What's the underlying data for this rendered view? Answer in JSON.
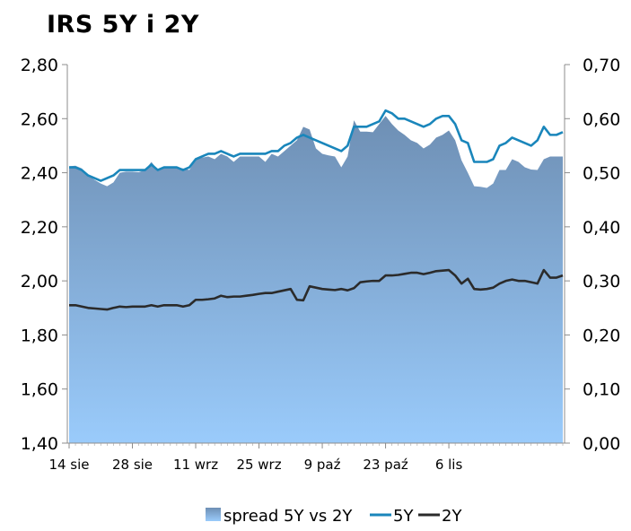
{
  "chart_data": {
    "type": "area",
    "title": "IRS 5Y i 2Y",
    "x_tick_labels": [
      "14 sie",
      "28 sie",
      "11 wrz",
      "25 wrz",
      "9 paź",
      "23 paź",
      "6 lis"
    ],
    "y_left": {
      "ticks": [
        "1,40",
        "1,60",
        "1,80",
        "2,00",
        "2,20",
        "2,40",
        "2,60",
        "2,80"
      ],
      "min": 1.4,
      "max": 2.8
    },
    "y_right": {
      "ticks": [
        "0,00",
        "0,10",
        "0,20",
        "0,30",
        "0,40",
        "0,50",
        "0,60",
        "0,70"
      ],
      "min": 0.0,
      "max": 0.7
    },
    "grid": false,
    "legend_position": "bottom",
    "colors": {
      "spread_top": "#6e8fb4",
      "spread_bottom": "#9acbfb",
      "line_5y": "#1a86bb",
      "line_2y": "#2b2b2b"
    },
    "series": [
      {
        "name": "spread 5Y vs 2Y",
        "axis": "right",
        "kind": "area",
        "values": [
          0.512,
          0.513,
          0.508,
          0.495,
          0.487,
          0.48,
          0.475,
          0.482,
          0.5,
          0.502,
          0.502,
          0.501,
          0.505,
          0.52,
          0.505,
          0.51,
          0.51,
          0.51,
          0.508,
          0.505,
          0.525,
          0.528,
          0.53,
          0.525,
          0.535,
          0.53,
          0.52,
          0.53,
          0.53,
          0.53,
          0.53,
          0.52,
          0.535,
          0.53,
          0.54,
          0.55,
          0.56,
          0.585,
          0.58,
          0.545,
          0.535,
          0.532,
          0.53,
          0.51,
          0.53,
          0.597,
          0.576,
          0.576,
          0.575,
          0.59,
          0.605,
          0.59,
          0.578,
          0.57,
          0.56,
          0.555,
          0.545,
          0.552,
          0.565,
          0.57,
          0.578,
          0.56,
          0.523,
          0.5,
          0.475,
          0.474,
          0.472,
          0.48,
          0.505,
          0.505,
          0.525,
          0.52,
          0.51,
          0.506,
          0.505,
          0.525,
          0.53,
          0.53,
          0.53
        ]
      },
      {
        "name": "5Y",
        "axis": "left",
        "kind": "line",
        "values": [
          2.42,
          2.42,
          2.41,
          2.39,
          2.38,
          2.37,
          2.38,
          2.39,
          2.41,
          2.41,
          2.41,
          2.41,
          2.41,
          2.43,
          2.41,
          2.42,
          2.42,
          2.42,
          2.41,
          2.42,
          2.45,
          2.46,
          2.47,
          2.47,
          2.48,
          2.47,
          2.46,
          2.47,
          2.47,
          2.47,
          2.47,
          2.47,
          2.48,
          2.48,
          2.5,
          2.51,
          2.53,
          2.54,
          2.53,
          2.52,
          2.51,
          2.5,
          2.49,
          2.48,
          2.5,
          2.57,
          2.57,
          2.57,
          2.58,
          2.59,
          2.63,
          2.62,
          2.6,
          2.6,
          2.59,
          2.58,
          2.57,
          2.58,
          2.6,
          2.61,
          2.61,
          2.58,
          2.52,
          2.51,
          2.44,
          2.44,
          2.44,
          2.45,
          2.5,
          2.51,
          2.53,
          2.52,
          2.51,
          2.5,
          2.52,
          2.57,
          2.54,
          2.54,
          2.55
        ]
      },
      {
        "name": "2Y",
        "axis": "left",
        "kind": "line",
        "values": [
          1.91,
          1.91,
          1.905,
          1.9,
          1.898,
          1.896,
          1.894,
          1.9,
          1.905,
          1.903,
          1.905,
          1.905,
          1.905,
          1.91,
          1.905,
          1.91,
          1.91,
          1.91,
          1.905,
          1.91,
          1.93,
          1.93,
          1.932,
          1.935,
          1.945,
          1.94,
          1.942,
          1.942,
          1.945,
          1.948,
          1.952,
          1.955,
          1.955,
          1.96,
          1.965,
          1.97,
          1.93,
          1.928,
          1.98,
          1.975,
          1.97,
          1.968,
          1.966,
          1.97,
          1.965,
          1.973,
          1.995,
          1.998,
          2.0,
          2.0,
          2.02,
          2.02,
          2.022,
          2.026,
          2.03,
          2.03,
          2.025,
          2.03,
          2.036,
          2.038,
          2.04,
          2.02,
          1.99,
          2.008,
          1.97,
          1.968,
          1.97,
          1.975,
          1.99,
          2.0,
          2.005,
          2.0,
          2.0,
          1.995,
          1.99,
          2.04,
          2.012,
          2.012,
          2.02
        ]
      }
    ]
  }
}
